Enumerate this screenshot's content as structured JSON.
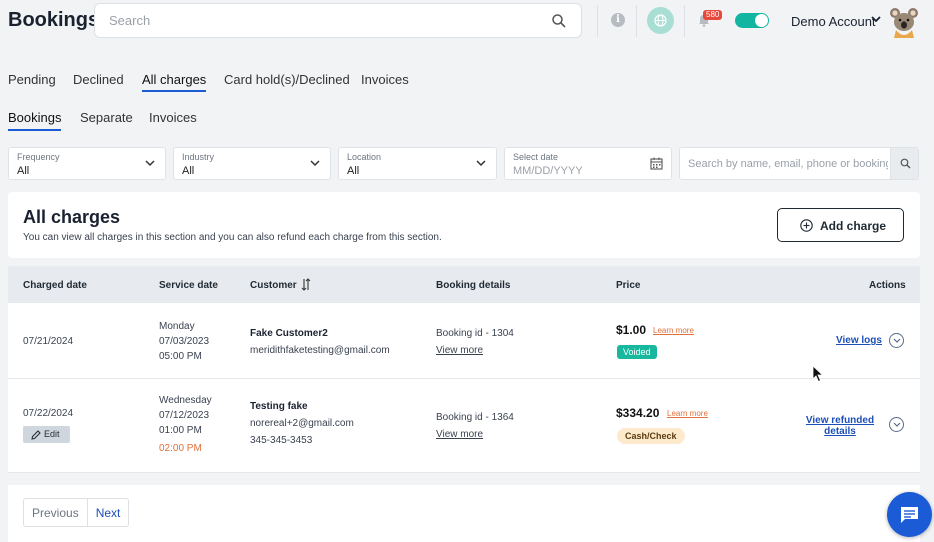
{
  "header": {
    "title": "Bookings",
    "search_placeholder": "Search",
    "notification_count": "580",
    "account_name": "Demo Account"
  },
  "main_tabs": [
    "Pending",
    "Declined",
    "All charges",
    "Card hold(s)/Declined",
    "Invoices"
  ],
  "main_tabs_active": "All charges",
  "sub_tabs": [
    "Bookings",
    "Separate",
    "Invoices"
  ],
  "sub_tabs_active": "Bookings",
  "filters": {
    "frequency": {
      "label": "Frequency",
      "value": "All"
    },
    "industry": {
      "label": "Industry",
      "value": "All"
    },
    "location": {
      "label": "Location",
      "value": "All"
    },
    "date": {
      "label": "Select date",
      "placeholder": "MM/DD/YYYY"
    },
    "search_placeholder": "Search by name, email, phone or booking id"
  },
  "section": {
    "title": "All charges",
    "subtitle": "You can view all charges in this section and you can also refund each charge from this section.",
    "add_button": "Add charge"
  },
  "table": {
    "headers": {
      "charged_date": "Charged date",
      "service_date": "Service date",
      "customer": "Customer",
      "booking_details": "Booking details",
      "price": "Price",
      "actions": "Actions"
    },
    "rows": [
      {
        "charged_date": "07/21/2024",
        "service_day": "Monday",
        "service_date": "07/03/2023",
        "service_time": "05:00 PM",
        "customer_name": "Fake Customer2",
        "customer_email": "meridithfaketesting@gmail.com",
        "booking_id": "Booking id - 1304",
        "view_more": "View more",
        "price": "$1.00",
        "learn_more": "Learn more",
        "status": "Voided",
        "action": "View logs"
      },
      {
        "charged_date": "07/22/2024",
        "edit_label": "Edit",
        "service_day": "Wednesday",
        "service_date": "07/12/2023",
        "service_time": "01:00 PM",
        "service_time_end": "02:00 PM",
        "customer_name": "Testing fake",
        "customer_email": "norereal+2@gmail.com",
        "customer_phone": "345-345-3453",
        "booking_id": "Booking id - 1364",
        "view_more": "View more",
        "price": "$334.20",
        "learn_more": "Learn more",
        "status": "Cash/Check",
        "action_line1": "View refunded",
        "action_line2": "details"
      }
    ]
  },
  "pagination": {
    "previous": "Previous",
    "next": "Next"
  },
  "colors": {
    "accent": "#1c5bd6",
    "voided": "#17b89e",
    "toggle": "#12b5a0",
    "learn_more": "#e0713d"
  }
}
